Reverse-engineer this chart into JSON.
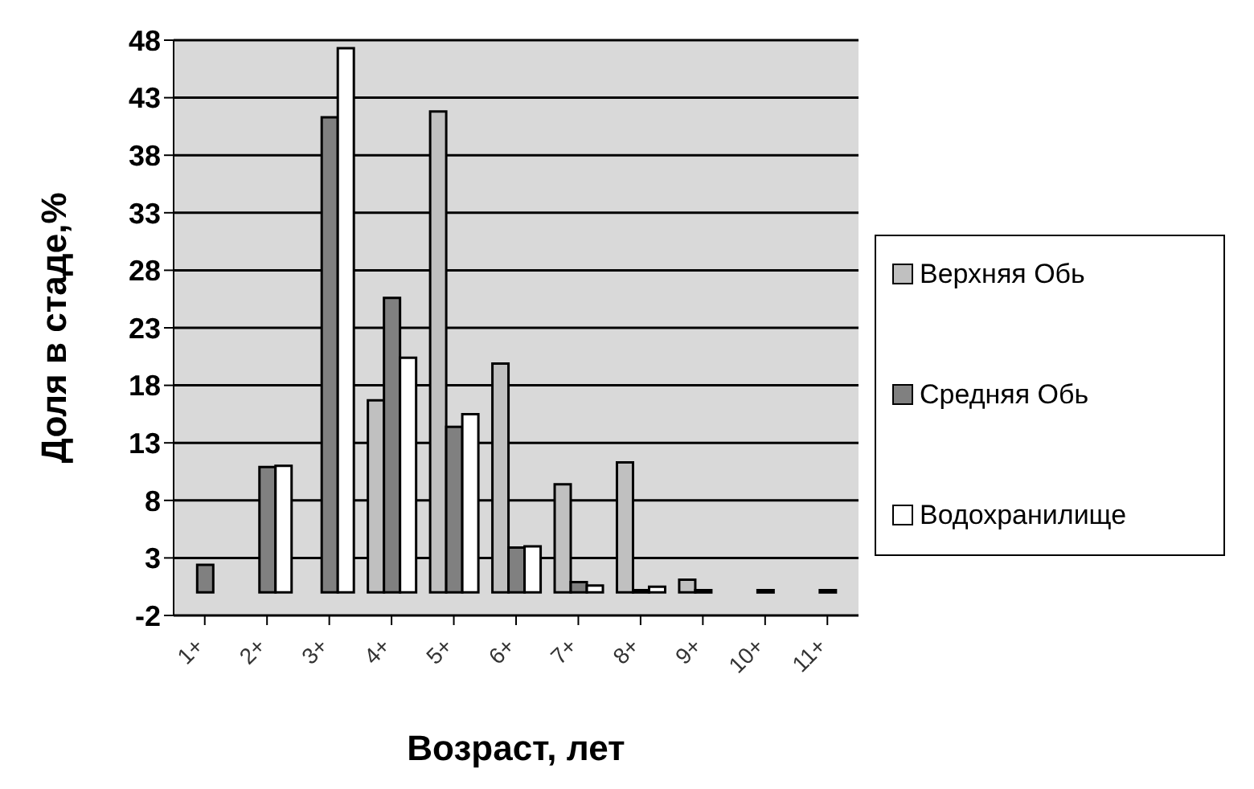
{
  "chart_data": {
    "type": "bar",
    "xlabel": "Возраст, лет",
    "ylabel": "Доля в стаде,%",
    "categories": [
      "1+",
      "2+",
      "3+",
      "4+",
      "5+",
      "6+",
      "7+",
      "8+",
      "9+",
      "10+",
      "11+"
    ],
    "series": [
      {
        "name": "Верхняя Обь",
        "color": "#c0c0c0",
        "values": [
          0,
          0,
          0,
          16.7,
          41.8,
          19.9,
          9.4,
          11.3,
          1.1,
          0,
          0
        ]
      },
      {
        "name": "Средняя Обь",
        "color": "#808080",
        "values": [
          2.4,
          10.9,
          41.3,
          25.6,
          14.4,
          3.9,
          0.9,
          0.2,
          0.2,
          0.2,
          0.2
        ]
      },
      {
        "name": "Водохранилище",
        "color": "#ffffff",
        "values": [
          0,
          11.0,
          47.3,
          20.4,
          15.5,
          4.0,
          0.6,
          0.5,
          0,
          0,
          0
        ]
      }
    ],
    "ylim": [
      -2,
      48
    ],
    "yticks": [
      -2,
      3,
      8,
      13,
      18,
      23,
      28,
      33,
      38,
      43,
      48
    ],
    "grid": "y",
    "legend": "right"
  }
}
